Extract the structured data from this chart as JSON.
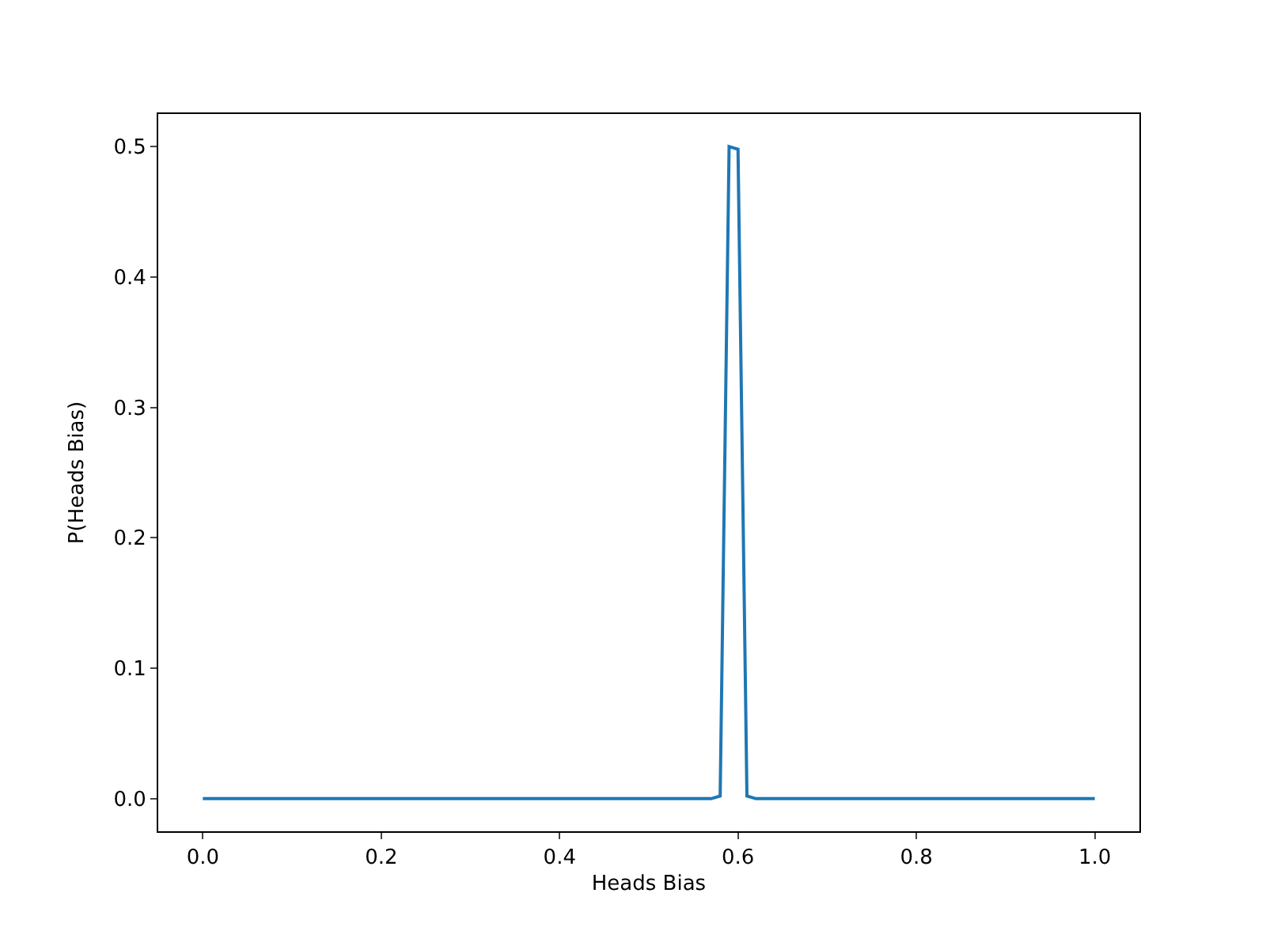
{
  "chart_data": {
    "type": "line",
    "xlabel": "Heads Bias",
    "ylabel": "P(Heads Bias)",
    "x": [
      0,
      0.57,
      0.58,
      0.59,
      0.6,
      0.61,
      0.62,
      1
    ],
    "series": [
      {
        "color": "#1f77b4",
        "values": [
          0,
          0,
          0.002,
          0.5,
          0.498,
          0.002,
          0,
          0
        ]
      }
    ],
    "xlim": [
      -0.05,
      1.05
    ],
    "ylim": [
      -0.025,
      0.525
    ],
    "xticks": [
      {
        "value": 0,
        "label": "0.0"
      },
      {
        "value": 0.2,
        "label": "0.2"
      },
      {
        "value": 0.4,
        "label": "0.4"
      },
      {
        "value": 0.6,
        "label": "0.6"
      },
      {
        "value": 0.8,
        "label": "0.8"
      },
      {
        "value": 1,
        "label": "1.0"
      }
    ],
    "yticks": [
      {
        "value": 0,
        "label": "0.0"
      },
      {
        "value": 0.1,
        "label": "0.1"
      },
      {
        "value": 0.2,
        "label": "0.2"
      },
      {
        "value": 0.3,
        "label": "0.3"
      },
      {
        "value": 0.4,
        "label": "0.4"
      },
      {
        "value": 0.5,
        "label": "0.5"
      }
    ],
    "marker": "none",
    "line_style": "solid"
  }
}
